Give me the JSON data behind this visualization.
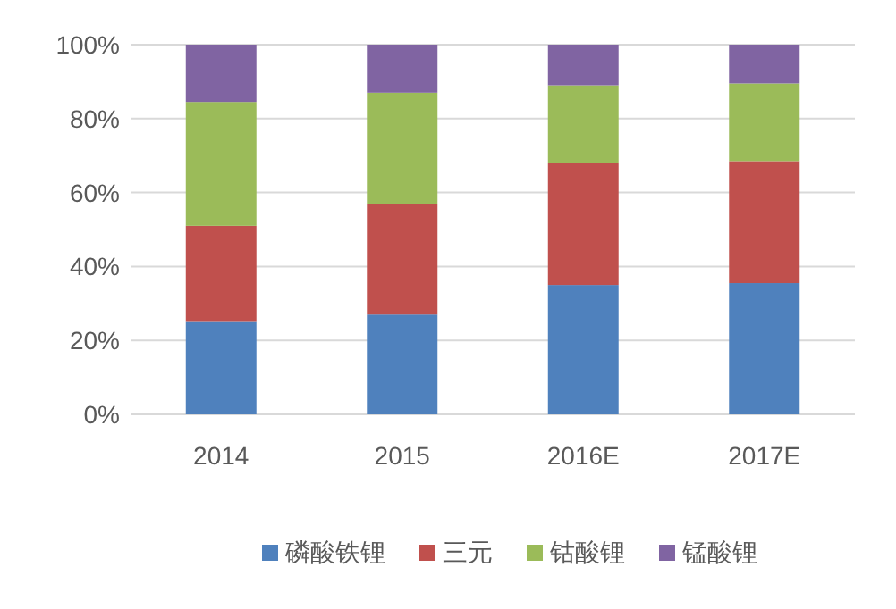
{
  "chart_data": {
    "type": "bar",
    "stacked": true,
    "categories": [
      "2014",
      "2015",
      "2016E",
      "2017E"
    ],
    "series": [
      {
        "name": "磷酸铁锂",
        "color": "#4f81bd",
        "values": [
          25,
          27,
          35,
          35.5
        ]
      },
      {
        "name": "三元",
        "color": "#c0504d",
        "values": [
          26,
          30,
          33,
          33
        ]
      },
      {
        "name": "钴酸锂",
        "color": "#9bbb59",
        "values": [
          33.5,
          30,
          21,
          21
        ]
      },
      {
        "name": "锰酸锂",
        "color": "#8064a2",
        "values": [
          15.5,
          13,
          11,
          10.5
        ]
      }
    ],
    "ylim": [
      0,
      100
    ],
    "yticks": [
      {
        "value": 0,
        "label": "0%"
      },
      {
        "value": 20,
        "label": "20%"
      },
      {
        "value": 40,
        "label": "40%"
      },
      {
        "value": 60,
        "label": "60%"
      },
      {
        "value": 80,
        "label": "80%"
      },
      {
        "value": 100,
        "label": "100%"
      }
    ],
    "grid": "y",
    "legend": "bottom"
  }
}
